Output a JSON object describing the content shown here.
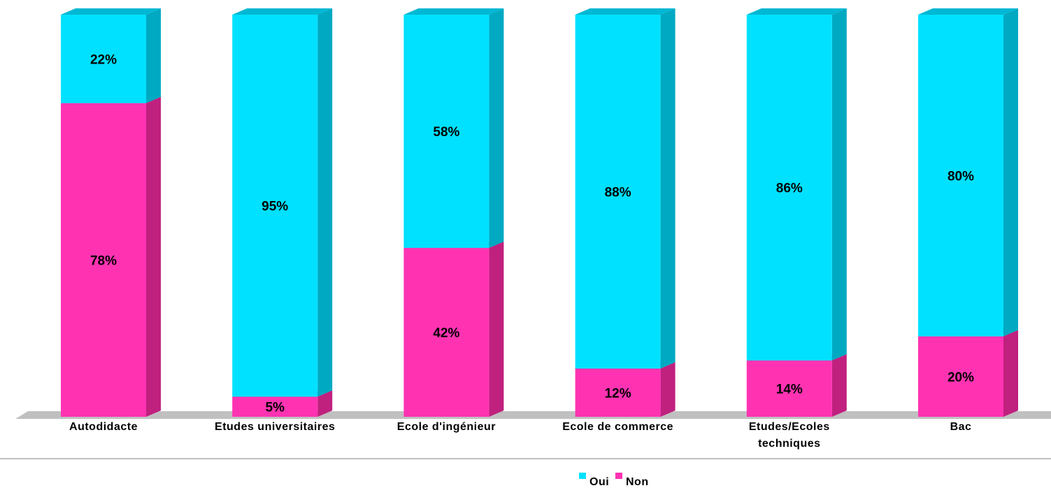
{
  "chart_data": {
    "type": "bar",
    "stacked": true,
    "percent": true,
    "categories": [
      [
        "Autodidacte"
      ],
      [
        "Etudes universitaires"
      ],
      [
        "Ecole d'ingénieur"
      ],
      [
        "Ecole de commerce"
      ],
      [
        "Etudes/Ecoles",
        "techniques"
      ],
      [
        "Bac"
      ]
    ],
    "series": [
      {
        "name": "Non",
        "values": [
          78,
          5,
          42,
          12,
          14,
          20
        ],
        "labels": [
          "78%",
          "5%",
          "42%",
          "12%",
          "14%",
          "20%"
        ]
      },
      {
        "name": "Oui",
        "values": [
          22,
          95,
          58,
          88,
          86,
          80
        ],
        "labels": [
          "22%",
          "95%",
          "58%",
          "88%",
          "86%",
          "80%"
        ]
      }
    ],
    "ylim": [
      0,
      100
    ],
    "legend_position": "bottom",
    "legend": [
      "Oui",
      "Non"
    ],
    "colors": {
      "Oui": "#00e1ff",
      "Oui_side": "#00a9c2",
      "Oui_top": "#00b8d4",
      "Non": "#ff33b2",
      "Non_side": "#c0207e",
      "Non_top": "#d6288f",
      "floor": "#c0c0c0",
      "rule": "#808080"
    }
  }
}
